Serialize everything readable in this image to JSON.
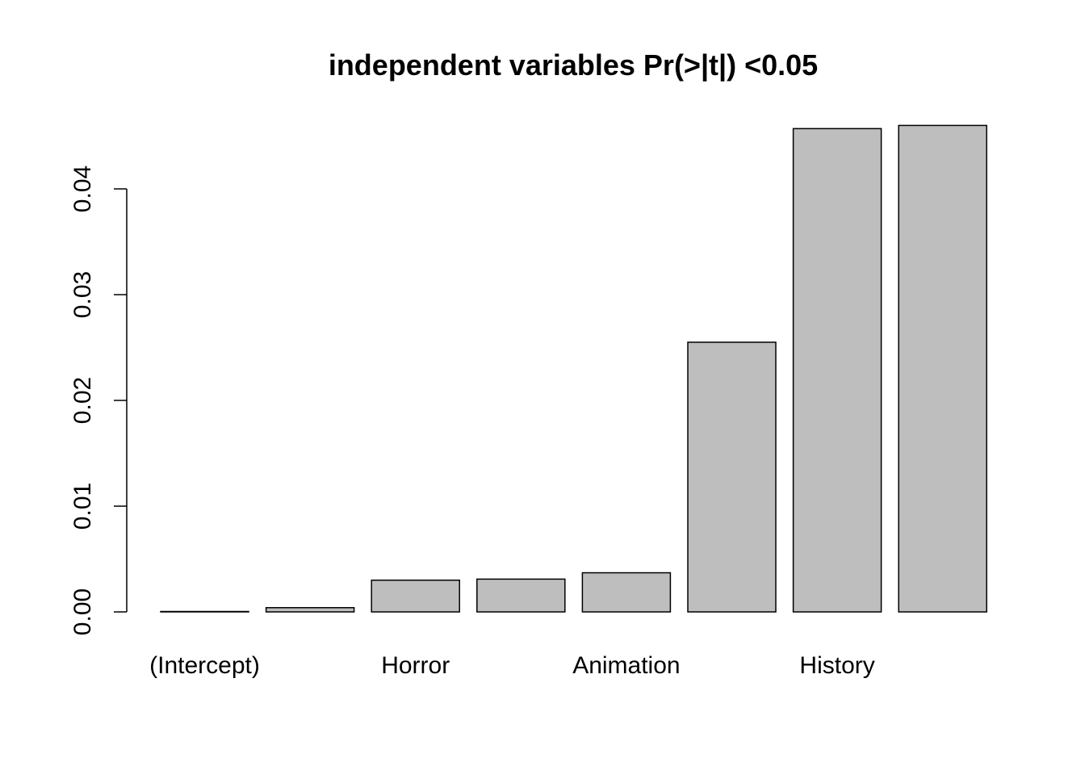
{
  "chart_data": {
    "type": "bar",
    "title": "independent variables Pr(>|t|) <0.05",
    "xlabel": "",
    "ylabel": "",
    "categories": [
      "(Intercept)",
      "",
      "Horror",
      "",
      "Animation",
      "",
      "History",
      ""
    ],
    "values": [
      2e-05,
      0.0004,
      0.003,
      0.0031,
      0.0037,
      0.0255,
      0.0457,
      0.046
    ],
    "ylim": [
      0,
      0.046
    ],
    "yticks": [
      0.0,
      0.01,
      0.02,
      0.03,
      0.04
    ],
    "ytick_labels": [
      "0.00",
      "0.01",
      "0.02",
      "0.03",
      "0.04"
    ],
    "bar_color": "#bebebe",
    "bar_border_color": "#000000",
    "grid": false,
    "legend": "none"
  }
}
